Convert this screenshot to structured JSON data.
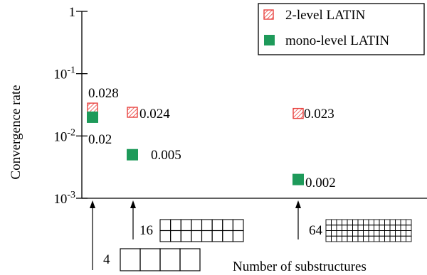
{
  "chart_data": {
    "type": "scatter",
    "yscale": "log",
    "ylim": [
      0.001,
      1
    ],
    "xlabel": "Number of substructures",
    "ylabel": "Convergence rate",
    "y_ticks": [
      {
        "value": 1,
        "base": "1",
        "exp": ""
      },
      {
        "value": 0.1,
        "base": "10",
        "exp": "-1"
      },
      {
        "value": 0.01,
        "base": "10",
        "exp": "-2"
      },
      {
        "value": 0.001,
        "base": "10",
        "exp": "-3"
      }
    ],
    "categories": [
      "4",
      "16",
      "64"
    ],
    "legend_position": "top-right",
    "series": [
      {
        "name": "2-level LATIN",
        "marker": "hatched-square",
        "color": "#e8413e",
        "values": [
          0.028,
          0.024,
          0.023
        ],
        "labels": [
          "0.028",
          "0.024",
          "0.023"
        ]
      },
      {
        "name": "mono-level LATIN",
        "marker": "filled-square",
        "color": "#1e9a5a",
        "values": [
          0.02,
          0.005,
          0.002
        ],
        "labels": [
          "0.02",
          "0.005",
          "0.002"
        ]
      }
    ]
  }
}
